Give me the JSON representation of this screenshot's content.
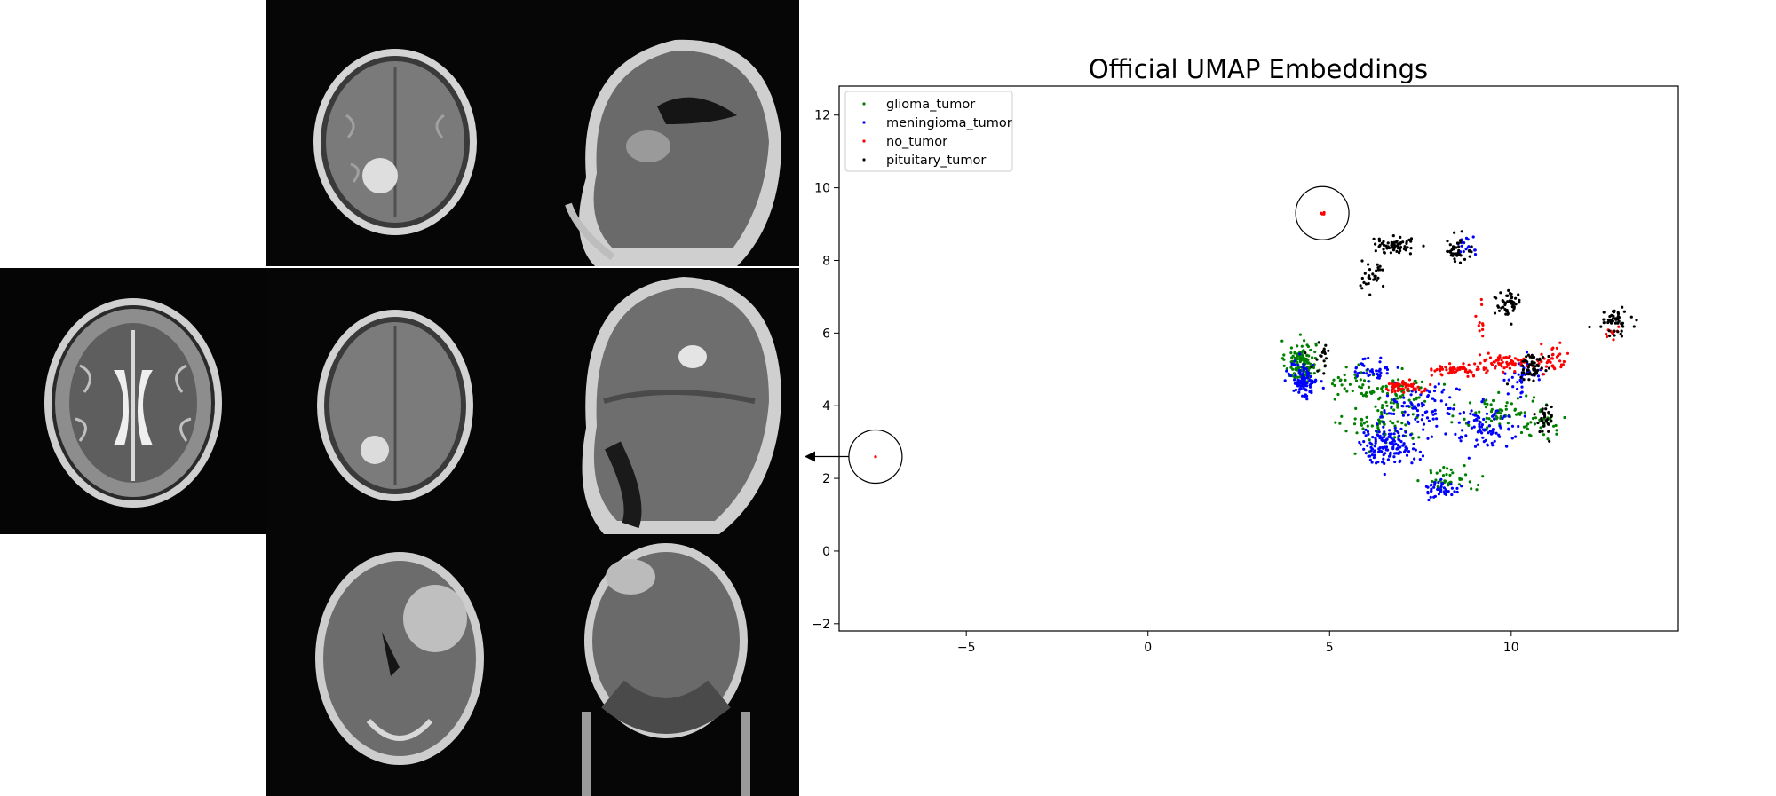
{
  "mri_views": [
    {
      "view": "axial-t2"
    },
    {
      "view": "axial-t1-tumor-right-occipital"
    },
    {
      "view": "sagittal-t1-normal"
    },
    {
      "view": "axial-t1-tumor-left"
    },
    {
      "view": "sagittal-t1-tumor-frontal"
    },
    {
      "view": "coronal-t1-tumor-large"
    },
    {
      "view": "coronal-t1-tumor-superior"
    }
  ],
  "chart_data": {
    "type": "scatter",
    "title": "Official UMAP Embeddings",
    "xlabel": "",
    "ylabel": "",
    "xlim": [
      -8.5,
      14.6
    ],
    "ylim": [
      -2.2,
      12.8
    ],
    "x_ticks": [
      -5,
      0,
      5,
      10
    ],
    "y_ticks": [
      -2,
      0,
      2,
      4,
      6,
      8,
      10,
      12
    ],
    "x_tick_labels": [
      "−5",
      "0",
      "5",
      "10"
    ],
    "y_tick_labels": [
      "−2",
      "0",
      "2",
      "4",
      "6",
      "8",
      "10",
      "12"
    ],
    "grid": false,
    "legend_position": "top-left",
    "series": [
      {
        "name": "glioma_tumor",
        "color": "#008000",
        "clusters": [
          [
            4.2,
            5.2,
            0.35,
            0.5,
            120
          ],
          [
            7.0,
            4.4,
            0.6,
            0.4,
            60
          ],
          [
            6.5,
            3.5,
            0.9,
            0.6,
            70
          ],
          [
            8.3,
            2.0,
            0.6,
            0.3,
            40
          ],
          [
            9.6,
            3.8,
            0.8,
            0.5,
            60
          ],
          [
            10.8,
            3.6,
            0.6,
            0.4,
            40
          ],
          [
            5.8,
            4.6,
            0.7,
            0.4,
            40
          ]
        ]
      },
      {
        "name": "meningioma_tumor",
        "color": "#0000ff",
        "clusters": [
          [
            4.3,
            4.7,
            0.3,
            0.4,
            110
          ],
          [
            6.6,
            2.9,
            0.7,
            0.4,
            140
          ],
          [
            8.1,
            1.7,
            0.4,
            0.2,
            40
          ],
          [
            6.2,
            5.0,
            0.4,
            0.3,
            40
          ],
          [
            8.8,
            8.4,
            0.3,
            0.2,
            20
          ],
          [
            9.3,
            3.4,
            0.8,
            0.5,
            80
          ],
          [
            10.3,
            4.8,
            0.6,
            0.4,
            40
          ],
          [
            7.5,
            3.9,
            0.9,
            0.5,
            90
          ]
        ]
      },
      {
        "name": "no_tumor",
        "color": "#ff0000",
        "clusters": [
          [
            7.0,
            4.5,
            0.5,
            0.15,
            60
          ],
          [
            8.6,
            5.0,
            0.6,
            0.12,
            60
          ],
          [
            9.8,
            5.2,
            0.5,
            0.2,
            60
          ],
          [
            11.1,
            5.3,
            0.4,
            0.3,
            40
          ],
          [
            9.2,
            6.3,
            0.15,
            0.4,
            10
          ],
          [
            12.8,
            6.0,
            0.2,
            0.2,
            10
          ],
          [
            4.8,
            9.3,
            0.06,
            0.06,
            4
          ],
          [
            -7.5,
            2.6,
            0.01,
            0.01,
            1
          ]
        ]
      },
      {
        "name": "pituitary_tumor",
        "color": "#000000",
        "clusters": [
          [
            6.8,
            8.4,
            0.5,
            0.2,
            60
          ],
          [
            6.2,
            7.6,
            0.3,
            0.3,
            30
          ],
          [
            8.5,
            8.2,
            0.35,
            0.3,
            40
          ],
          [
            9.9,
            6.8,
            0.3,
            0.3,
            50
          ],
          [
            10.6,
            5.1,
            0.3,
            0.3,
            60
          ],
          [
            12.9,
            6.3,
            0.3,
            0.25,
            50
          ],
          [
            10.9,
            3.6,
            0.2,
            0.5,
            30
          ],
          [
            4.8,
            5.3,
            0.3,
            0.4,
            20
          ]
        ]
      }
    ],
    "annotations": [
      {
        "type": "circle",
        "x": 4.8,
        "y": 9.3
      },
      {
        "type": "circle",
        "x": -7.5,
        "y": 2.6,
        "arrow": "left"
      }
    ]
  }
}
